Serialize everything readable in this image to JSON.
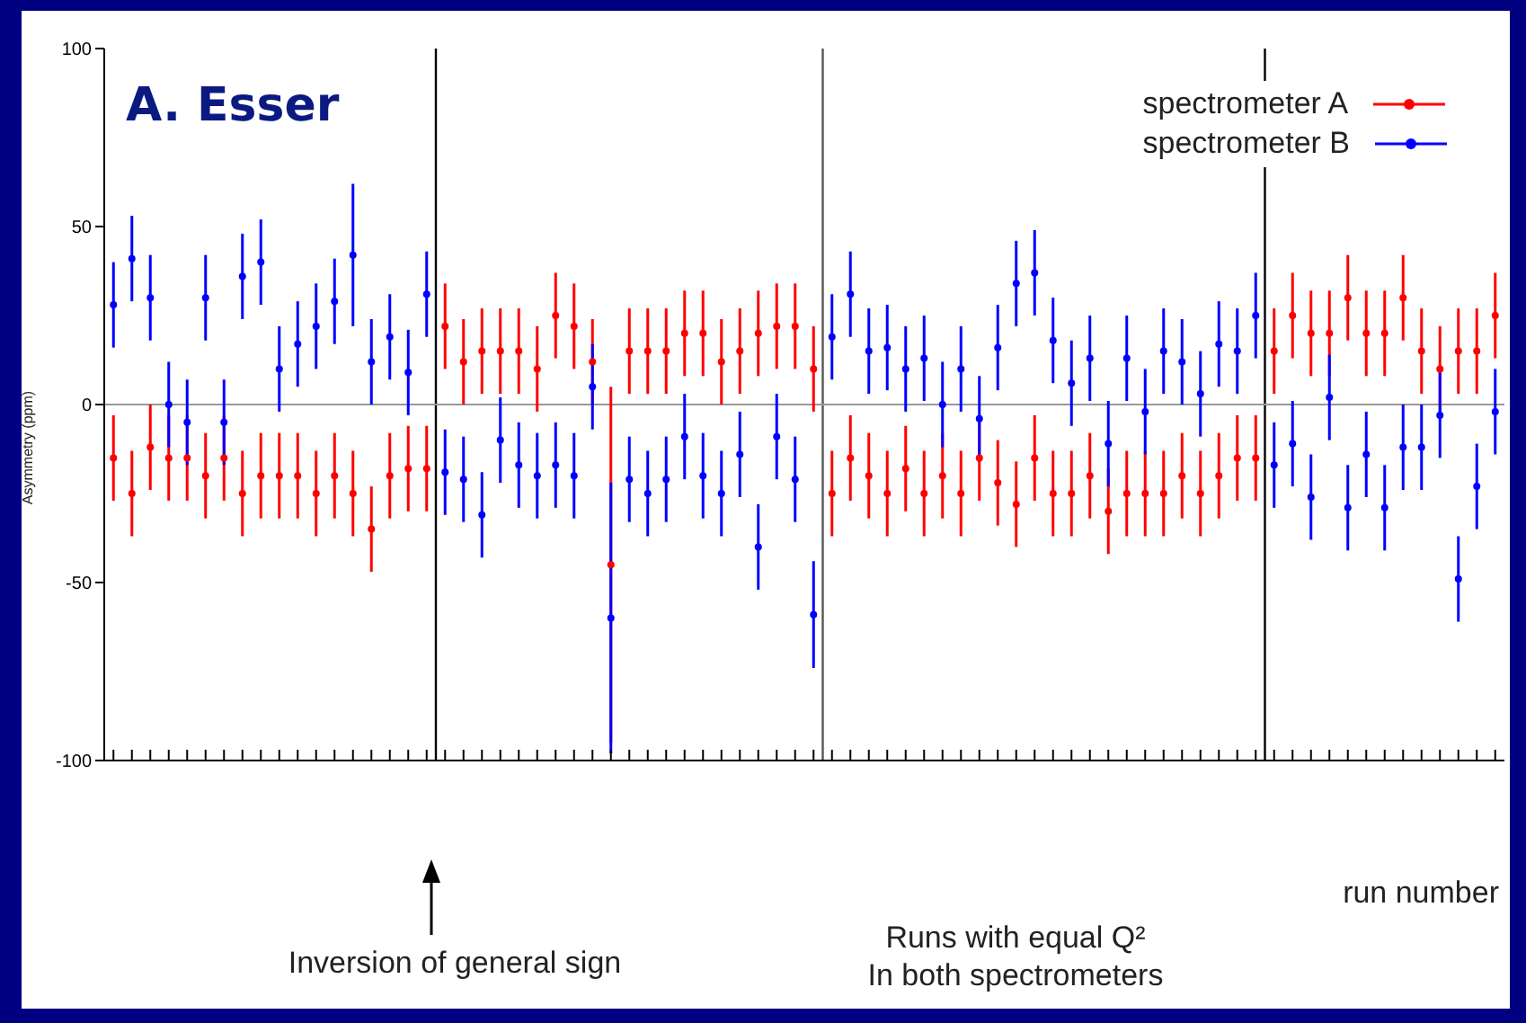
{
  "chart_data": {
    "type": "scatter",
    "title": "A. Esser",
    "xlabel": "run number",
    "ylabel": "Asymmetry (ppm)",
    "categories": [
      null,
      null,
      null,
      null,
      null,
      null,
      null,
      null,
      null,
      null,
      null,
      null,
      null,
      null,
      null,
      null,
      null,
      null,
      null,
      null,
      null,
      null,
      null,
      null,
      null,
      null,
      null,
      null,
      null,
      null,
      null,
      null,
      null,
      null,
      null,
      null,
      null,
      null,
      null,
      null,
      null,
      null,
      null,
      null,
      null,
      null,
      null,
      null,
      null,
      null,
      null,
      null,
      null,
      null,
      null,
      null,
      null,
      null,
      null,
      null,
      null,
      null,
      null,
      null,
      null,
      null,
      null,
      null,
      null,
      null,
      null,
      null,
      null,
      null,
      null,
      null
    ],
    "series": [
      {
        "name": "spectrometer A",
        "color": "#ff0000",
        "values": [
          -15,
          -25,
          -12,
          -15,
          -15,
          -20,
          -15,
          -25,
          -20,
          -20,
          -20,
          -25,
          -20,
          -25,
          -35,
          -20,
          -18,
          -18,
          22,
          12,
          15,
          15,
          15,
          10,
          25,
          22,
          12,
          -45,
          15,
          15,
          15,
          20,
          20,
          12,
          15,
          20,
          22,
          22,
          10,
          -25,
          -15,
          -20,
          -25,
          -18,
          -25,
          -20,
          -25,
          -15,
          -22,
          -28,
          -15,
          -25,
          -25,
          -20,
          -30,
          -25,
          -25,
          -25,
          -20,
          -25,
          -20,
          -15,
          -15,
          15,
          25,
          20,
          20,
          30,
          20,
          20,
          30,
          15,
          10,
          15,
          15,
          25
        ],
        "errors": [
          12,
          12,
          12,
          12,
          12,
          12,
          12,
          12,
          12,
          12,
          12,
          12,
          12,
          12,
          12,
          12,
          12,
          12,
          12,
          12,
          12,
          12,
          12,
          12,
          12,
          12,
          12,
          50,
          12,
          12,
          12,
          12,
          12,
          12,
          12,
          12,
          12,
          12,
          12,
          12,
          12,
          12,
          12,
          12,
          12,
          12,
          12,
          12,
          12,
          12,
          12,
          12,
          12,
          12,
          12,
          12,
          12,
          12,
          12,
          12,
          12,
          12,
          12,
          12,
          12,
          12,
          12,
          12,
          12,
          12,
          12,
          12,
          12,
          12,
          12,
          12
        ]
      },
      {
        "name": "spectrometer B",
        "color": "#0000ff",
        "values": [
          28,
          41,
          30,
          0,
          -5,
          30,
          -5,
          36,
          40,
          10,
          17,
          22,
          29,
          42,
          12,
          19,
          9,
          31,
          -19,
          -21,
          -31,
          -10,
          -17,
          -20,
          -17,
          -20,
          5,
          -60,
          -21,
          -25,
          -21,
          -9,
          -20,
          -25,
          -14,
          -40,
          -9,
          -21,
          -59,
          19,
          31,
          15,
          16,
          10,
          13,
          0,
          10,
          -4,
          16,
          34,
          37,
          18,
          6,
          13,
          -11,
          13,
          -2,
          15,
          12,
          3,
          17,
          15,
          25,
          -17,
          -11,
          -26,
          2,
          -29,
          -14,
          -29,
          -12,
          -12,
          -3,
          -49,
          -23,
          -2
        ],
        "errors": [
          12,
          12,
          12,
          12,
          12,
          12,
          12,
          12,
          12,
          12,
          12,
          12,
          12,
          20,
          12,
          12,
          12,
          12,
          12,
          12,
          12,
          12,
          12,
          12,
          12,
          12,
          12,
          38,
          12,
          12,
          12,
          12,
          12,
          12,
          12,
          12,
          12,
          12,
          15,
          12,
          12,
          12,
          12,
          12,
          12,
          12,
          12,
          12,
          12,
          12,
          12,
          12,
          12,
          12,
          12,
          12,
          12,
          12,
          12,
          12,
          12,
          12,
          12,
          12,
          12,
          12,
          12,
          12,
          12,
          12,
          12,
          12,
          12,
          12,
          12,
          12
        ]
      }
    ],
    "ylim": [
      -100,
      100
    ],
    "yticks": [
      -100,
      -50,
      0,
      50,
      100
    ],
    "tick_labels": "y",
    "marker": "circle",
    "legend": "top right",
    "ref_lines": [
      {
        "axis": "y",
        "value": 0,
        "color": "#999999"
      }
    ],
    "annotations": [
      "Inversion of general sign",
      "Runs with equal Q²\nIn both spectrometers"
    ]
  }
}
